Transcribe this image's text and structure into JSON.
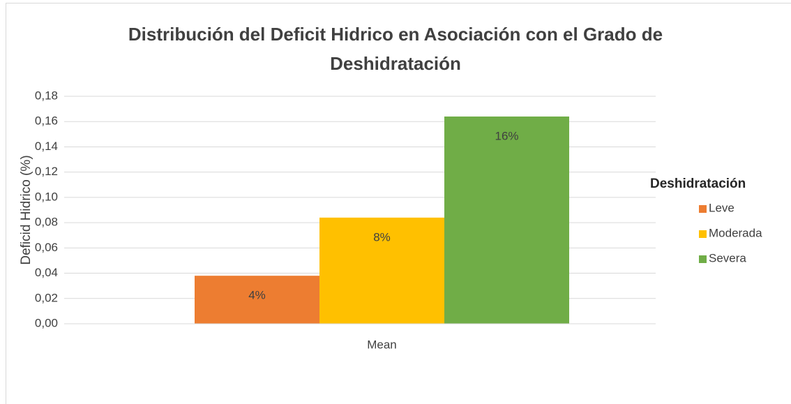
{
  "chart_data": {
    "type": "bar",
    "title": "Distribución del Deficit Hidrico en Asociación con el Grado de Deshidratación",
    "y_label": "Deficid Hidrico (%)",
    "categories": [
      "Mean"
    ],
    "legend_title": "Deshidratación",
    "legend": "right",
    "grid": true,
    "series": [
      {
        "name": "Leve",
        "color": "#ed7d31",
        "values": [
          0.038
        ],
        "value_labels": [
          "4%"
        ]
      },
      {
        "name": "Moderada",
        "color": "#ffc000",
        "values": [
          0.084
        ],
        "value_labels": [
          "8%"
        ]
      },
      {
        "name": "Severa",
        "color": "#70ad47",
        "values": [
          0.164
        ],
        "value_labels": [
          "16%"
        ]
      }
    ],
    "ylim": [
      0,
      0.18
    ],
    "yticks": [
      {
        "value": 0,
        "label": "0,00"
      },
      {
        "value": 0.02,
        "label": "0,02"
      },
      {
        "value": 0.04,
        "label": "0,04"
      },
      {
        "value": 0.06,
        "label": "0,06"
      },
      {
        "value": 0.08,
        "label": "0,08"
      },
      {
        "value": 0.1,
        "label": "0,10"
      },
      {
        "value": 0.12,
        "label": "0,12"
      },
      {
        "value": 0.14,
        "label": "0,14"
      },
      {
        "value": 0.16,
        "label": "0,16"
      },
      {
        "value": 0.18,
        "label": "0,18"
      }
    ]
  }
}
